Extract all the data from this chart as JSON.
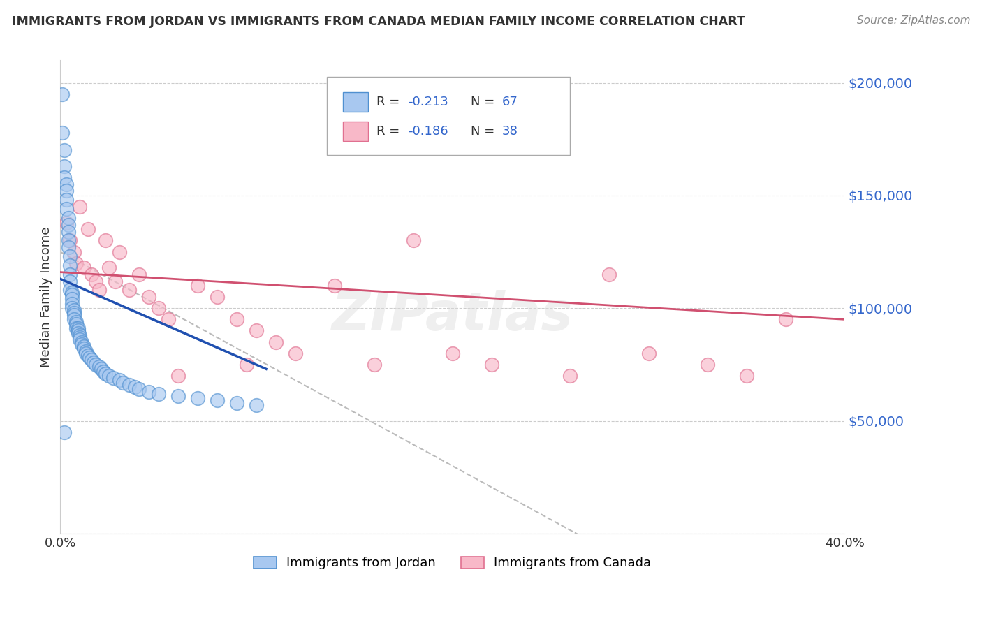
{
  "title": "IMMIGRANTS FROM JORDAN VS IMMIGRANTS FROM CANADA MEDIAN FAMILY INCOME CORRELATION CHART",
  "source": "Source: ZipAtlas.com",
  "ylabel": "Median Family Income",
  "xlim": [
    0.0,
    0.4
  ],
  "ylim": [
    0,
    210000
  ],
  "ytick_vals": [
    0,
    50000,
    100000,
    150000,
    200000
  ],
  "ytick_labels": [
    "",
    "$50,000",
    "$100,000",
    "$150,000",
    "$200,000"
  ],
  "legend_label1": "Immigrants from Jordan",
  "legend_label2": "Immigrants from Canada",
  "r1": "-0.213",
  "n1": "67",
  "r2": "-0.186",
  "n2": "38",
  "color_jordan_fill": "#A8C8F0",
  "color_jordan_edge": "#5090D0",
  "color_canada_fill": "#F8B8C8",
  "color_canada_edge": "#E07090",
  "color_jordan_line": "#2050B0",
  "color_canada_line": "#D05070",
  "color_dashed": "#BBBBBB",
  "color_blue_text": "#3366CC",
  "color_dark_text": "#333333",
  "background_color": "#FFFFFF",
  "grid_color": "#CCCCCC",
  "jordan_x": [
    0.001,
    0.001,
    0.002,
    0.002,
    0.002,
    0.003,
    0.003,
    0.003,
    0.003,
    0.004,
    0.004,
    0.004,
    0.004,
    0.004,
    0.005,
    0.005,
    0.005,
    0.005,
    0.005,
    0.006,
    0.006,
    0.006,
    0.006,
    0.006,
    0.007,
    0.007,
    0.007,
    0.007,
    0.008,
    0.008,
    0.008,
    0.009,
    0.009,
    0.009,
    0.01,
    0.01,
    0.01,
    0.011,
    0.011,
    0.012,
    0.012,
    0.013,
    0.013,
    0.014,
    0.015,
    0.016,
    0.017,
    0.018,
    0.02,
    0.021,
    0.022,
    0.023,
    0.025,
    0.027,
    0.03,
    0.032,
    0.035,
    0.038,
    0.04,
    0.045,
    0.05,
    0.06,
    0.07,
    0.08,
    0.09,
    0.1,
    0.002
  ],
  "jordan_y": [
    195000,
    178000,
    170000,
    163000,
    158000,
    155000,
    152000,
    148000,
    144000,
    140000,
    137000,
    134000,
    130000,
    127000,
    123000,
    119000,
    115000,
    112000,
    108000,
    107000,
    106000,
    104000,
    102000,
    100000,
    99000,
    98000,
    97000,
    95000,
    94000,
    93000,
    91000,
    91000,
    90000,
    89000,
    88000,
    87000,
    86000,
    85000,
    84000,
    83000,
    82000,
    81000,
    80000,
    79000,
    78000,
    77000,
    76000,
    75000,
    74000,
    73000,
    72000,
    71000,
    70000,
    69000,
    68000,
    67000,
    66000,
    65000,
    64000,
    63000,
    62000,
    61000,
    60000,
    59000,
    58000,
    57000,
    45000
  ],
  "canada_x": [
    0.003,
    0.005,
    0.007,
    0.008,
    0.01,
    0.012,
    0.014,
    0.016,
    0.018,
    0.02,
    0.023,
    0.025,
    0.028,
    0.03,
    0.035,
    0.04,
    0.045,
    0.05,
    0.055,
    0.06,
    0.07,
    0.08,
    0.09,
    0.095,
    0.1,
    0.11,
    0.12,
    0.14,
    0.16,
    0.18,
    0.2,
    0.22,
    0.26,
    0.28,
    0.3,
    0.33,
    0.35,
    0.37
  ],
  "canada_y": [
    138000,
    130000,
    125000,
    120000,
    145000,
    118000,
    135000,
    115000,
    112000,
    108000,
    130000,
    118000,
    112000,
    125000,
    108000,
    115000,
    105000,
    100000,
    95000,
    70000,
    110000,
    105000,
    95000,
    75000,
    90000,
    85000,
    80000,
    110000,
    75000,
    130000,
    80000,
    75000,
    70000,
    115000,
    80000,
    75000,
    70000,
    95000
  ],
  "jordan_line_x": [
    0.0,
    0.105
  ],
  "jordan_line_y": [
    113000,
    73000
  ],
  "canada_line_x": [
    0.0,
    0.4
  ],
  "canada_line_y": [
    116000,
    95000
  ],
  "dashed_line_x": [
    0.0,
    0.4
  ],
  "dashed_line_y": [
    125000,
    -65000
  ]
}
